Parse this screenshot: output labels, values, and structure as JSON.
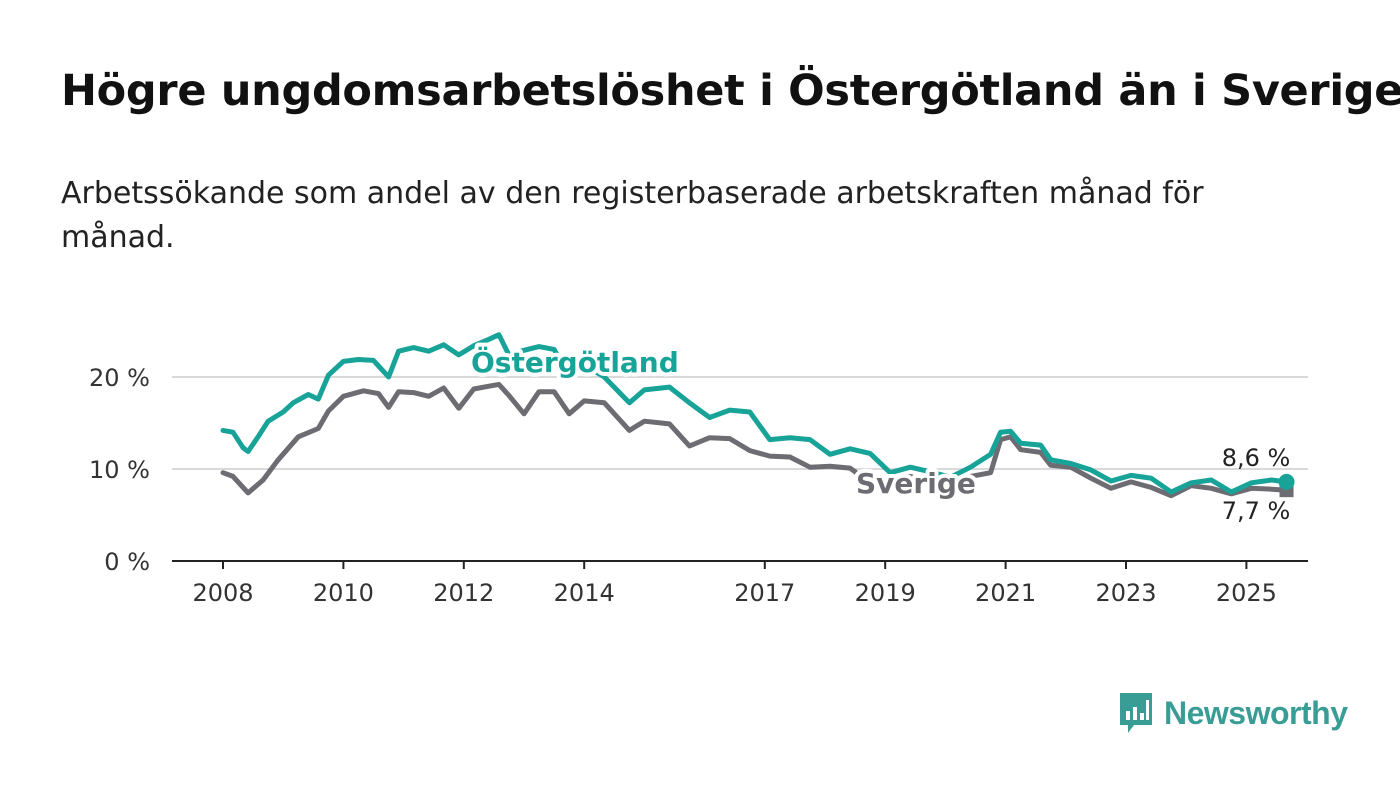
{
  "header": {
    "title": "Högre ungdomsarbetslöshet i Östergötland än i Sverige",
    "subtitle": "Arbetssökande som andel av den registerbaserade arbetskraften månad för månad."
  },
  "brand": {
    "name": "Newsworthy",
    "icon": "bar-chart-speech-bubble-icon",
    "color": "#3a9d95"
  },
  "chart_data": {
    "type": "line",
    "title": "Högre ungdomsarbetslöshet i Östergötland än i Sverige",
    "xlabel": "",
    "ylabel": "",
    "x_ticks": [
      "2008",
      "2010",
      "2012",
      "2014",
      "2017",
      "2019",
      "2021",
      "2023",
      "2025"
    ],
    "y_ticks": [
      "0 %",
      "10 %",
      "20 %"
    ],
    "y_tick_values": [
      0,
      10,
      20
    ],
    "ylim": [
      0,
      20
    ],
    "grid": true,
    "series": [
      {
        "name": "Östergötland",
        "color": "#17a398",
        "end_label": "8,6 %",
        "points": [
          [
            "2008-01",
            14.2
          ],
          [
            "2008-03",
            14.0
          ],
          [
            "2008-05",
            12.3
          ],
          [
            "2008-06",
            11.9
          ],
          [
            "2008-08",
            13.5
          ],
          [
            "2008-10",
            15.2
          ],
          [
            "2009-01",
            16.2
          ],
          [
            "2009-03",
            17.2
          ],
          [
            "2009-06",
            18.1
          ],
          [
            "2009-08",
            17.6
          ],
          [
            "2009-10",
            20.2
          ],
          [
            "2010-01",
            21.7
          ],
          [
            "2010-04",
            21.9
          ],
          [
            "2010-07",
            21.8
          ],
          [
            "2010-10",
            20.0
          ],
          [
            "2010-12",
            22.8
          ],
          [
            "2011-03",
            23.2
          ],
          [
            "2011-06",
            22.8
          ],
          [
            "2011-09",
            23.5
          ],
          [
            "2011-12",
            22.4
          ],
          [
            "2012-03",
            23.4
          ],
          [
            "2012-06",
            24.1
          ],
          [
            "2012-08",
            24.6
          ],
          [
            "2012-10",
            22.4
          ],
          [
            "2013-01",
            22.9
          ],
          [
            "2013-04",
            23.3
          ],
          [
            "2013-07",
            23.0
          ],
          [
            "2013-10",
            20.0
          ],
          [
            "2014-01",
            21.3
          ],
          [
            "2014-05",
            20.0
          ],
          [
            "2014-10",
            17.2
          ],
          [
            "2015-01",
            18.6
          ],
          [
            "2015-06",
            18.9
          ],
          [
            "2015-10",
            17.2
          ],
          [
            "2016-02",
            15.6
          ],
          [
            "2016-06",
            16.4
          ],
          [
            "2016-10",
            16.2
          ],
          [
            "2017-02",
            13.2
          ],
          [
            "2017-06",
            13.4
          ],
          [
            "2017-10",
            13.2
          ],
          [
            "2018-02",
            11.6
          ],
          [
            "2018-06",
            12.2
          ],
          [
            "2018-10",
            11.7
          ],
          [
            "2019-02",
            9.6
          ],
          [
            "2019-06",
            10.2
          ],
          [
            "2019-10",
            9.7
          ],
          [
            "2020-02",
            9.1
          ],
          [
            "2020-06",
            10.2
          ],
          [
            "2020-10",
            11.6
          ],
          [
            "2020-12",
            14.0
          ],
          [
            "2021-02",
            14.1
          ],
          [
            "2021-04",
            12.8
          ],
          [
            "2021-08",
            12.6
          ],
          [
            "2021-10",
            11.0
          ],
          [
            "2022-02",
            10.6
          ],
          [
            "2022-06",
            9.9
          ],
          [
            "2022-10",
            8.7
          ],
          [
            "2023-02",
            9.3
          ],
          [
            "2023-06",
            9.0
          ],
          [
            "2023-10",
            7.5
          ],
          [
            "2024-02",
            8.5
          ],
          [
            "2024-06",
            8.8
          ],
          [
            "2024-10",
            7.5
          ],
          [
            "2025-02",
            8.5
          ],
          [
            "2025-06",
            8.8
          ],
          [
            "2025-09",
            8.6
          ]
        ]
      },
      {
        "name": "Sverige",
        "color": "#6e6c73",
        "end_label": "7,7 %",
        "points": [
          [
            "2008-01",
            9.6
          ],
          [
            "2008-03",
            9.2
          ],
          [
            "2008-06",
            7.4
          ],
          [
            "2008-09",
            8.8
          ],
          [
            "2008-12",
            11.0
          ],
          [
            "2009-04",
            13.5
          ],
          [
            "2009-08",
            14.4
          ],
          [
            "2009-10",
            16.3
          ],
          [
            "2010-01",
            17.9
          ],
          [
            "2010-05",
            18.5
          ],
          [
            "2010-08",
            18.2
          ],
          [
            "2010-10",
            16.7
          ],
          [
            "2010-12",
            18.4
          ],
          [
            "2011-03",
            18.3
          ],
          [
            "2011-06",
            17.9
          ],
          [
            "2011-09",
            18.8
          ],
          [
            "2011-12",
            16.6
          ],
          [
            "2012-03",
            18.7
          ],
          [
            "2012-06",
            19.0
          ],
          [
            "2012-08",
            19.2
          ],
          [
            "2012-10",
            18.0
          ],
          [
            "2013-01",
            16.0
          ],
          [
            "2013-04",
            18.4
          ],
          [
            "2013-07",
            18.4
          ],
          [
            "2013-10",
            16.0
          ],
          [
            "2014-01",
            17.4
          ],
          [
            "2014-05",
            17.2
          ],
          [
            "2014-10",
            14.2
          ],
          [
            "2015-01",
            15.2
          ],
          [
            "2015-06",
            14.9
          ],
          [
            "2015-10",
            12.5
          ],
          [
            "2016-02",
            13.4
          ],
          [
            "2016-06",
            13.3
          ],
          [
            "2016-10",
            12.0
          ],
          [
            "2017-02",
            11.4
          ],
          [
            "2017-06",
            11.3
          ],
          [
            "2017-10",
            10.2
          ],
          [
            "2018-02",
            10.3
          ],
          [
            "2018-06",
            10.1
          ],
          [
            "2018-10",
            8.5
          ],
          [
            "2019-02",
            8.8
          ],
          [
            "2019-06",
            9.2
          ],
          [
            "2019-10",
            8.6
          ],
          [
            "2020-02",
            8.4
          ],
          [
            "2020-06",
            9.2
          ],
          [
            "2020-10",
            9.6
          ],
          [
            "2020-12",
            13.2
          ],
          [
            "2021-02",
            13.5
          ],
          [
            "2021-04",
            12.1
          ],
          [
            "2021-08",
            11.8
          ],
          [
            "2021-10",
            10.4
          ],
          [
            "2022-02",
            10.2
          ],
          [
            "2022-06",
            9.0
          ],
          [
            "2022-10",
            7.9
          ],
          [
            "2023-02",
            8.6
          ],
          [
            "2023-06",
            8.0
          ],
          [
            "2023-10",
            7.1
          ],
          [
            "2024-02",
            8.2
          ],
          [
            "2024-06",
            7.9
          ],
          [
            "2024-10",
            7.3
          ],
          [
            "2025-02",
            7.9
          ],
          [
            "2025-06",
            7.8
          ],
          [
            "2025-09",
            7.7
          ]
        ]
      }
    ]
  }
}
